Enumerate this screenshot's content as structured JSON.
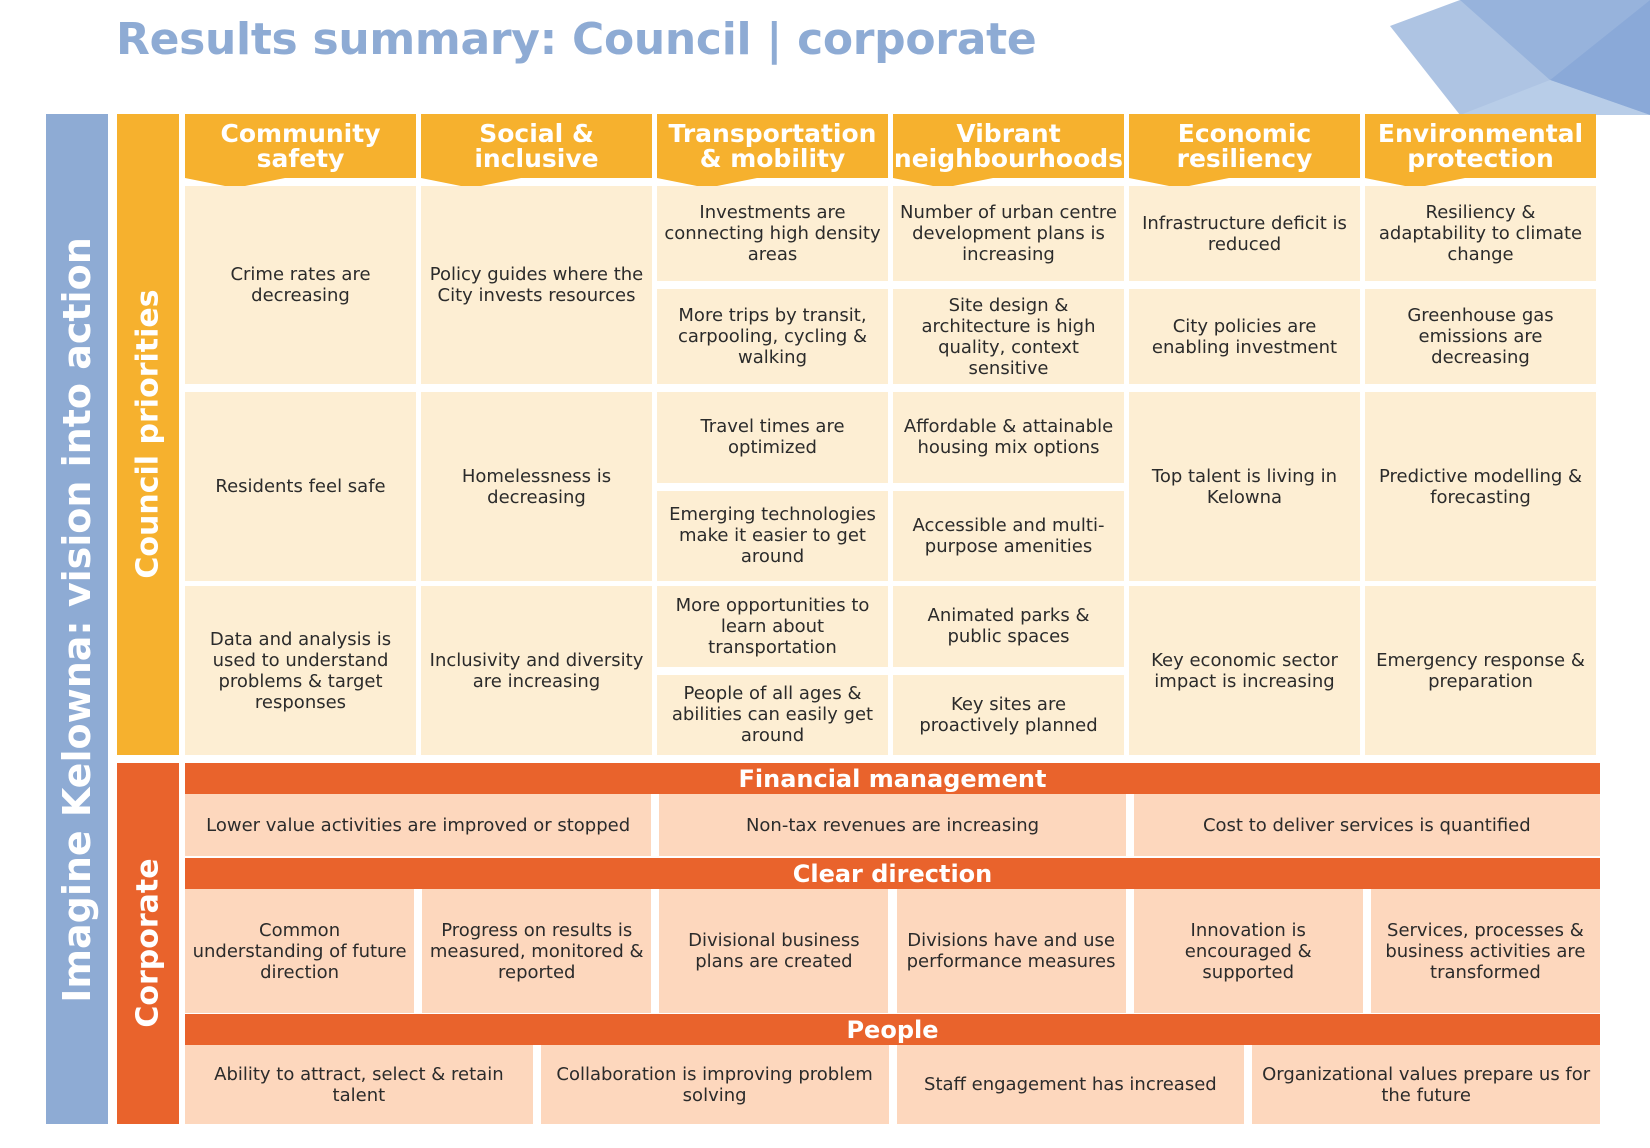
{
  "title": "Results summary: Council | corporate",
  "side": {
    "vision": "Imagine Kelowna: vision into action",
    "council": "Council priorities",
    "corporate": "Corporate"
  },
  "columns": [
    {
      "header": [
        "Community",
        "safety"
      ],
      "rows": [
        [
          "Crime rates are decreasing"
        ],
        [
          "Residents feel safe"
        ],
        [
          "Data and analysis is used to understand problems & target responses"
        ]
      ]
    },
    {
      "header": [
        "Social &",
        "inclusive"
      ],
      "rows": [
        [
          "Policy guides where the City invests resources"
        ],
        [
          "Homelessness is decreasing"
        ],
        [
          "Inclusivity and diversity are increasing"
        ]
      ]
    },
    {
      "header": [
        "Transportation",
        "& mobility"
      ],
      "rows": [
        [
          "Investments are connecting high density areas",
          "More trips by transit, carpooling, cycling & walking"
        ],
        [
          "Travel times are optimized",
          "Emerging technologies make it easier to get around"
        ],
        [
          "More opportunities to learn about transportation",
          "People of all ages & abilities can easily get around"
        ]
      ]
    },
    {
      "header": [
        "Vibrant",
        "neighbourhoods"
      ],
      "rows": [
        [
          "Number of urban centre development plans is increasing",
          "Site design & architecture is high quality, context sensitive"
        ],
        [
          "Affordable & attainable housing mix options",
          "Accessible and multi-purpose amenities"
        ],
        [
          "Animated parks & public spaces",
          "Key sites are proactively planned"
        ]
      ]
    },
    {
      "header": [
        "Economic",
        "resiliency"
      ],
      "rows": [
        [
          "Infrastructure deficit is reduced",
          "City policies are enabling investment"
        ],
        [
          "Top talent is living in Kelowna"
        ],
        [
          "Key economic sector impact is increasing"
        ]
      ]
    },
    {
      "header": [
        "Environmental",
        "protection"
      ],
      "rows": [
        [
          "Resiliency & adaptability to climate change",
          "Greenhouse gas emissions  are decreasing"
        ],
        [
          "Predictive modelling & forecasting"
        ],
        [
          "Emergency response & preparation"
        ]
      ]
    }
  ],
  "corporate": [
    {
      "title": "Financial management",
      "items": [
        "Lower value activities are improved or stopped",
        "Non-tax revenues are increasing",
        "Cost to deliver services is quantified"
      ]
    },
    {
      "title": "Clear direction",
      "items": [
        "Common understanding of future direction",
        "Progress on results is measured, monitored & reported",
        "Divisional business plans are created",
        "Divisions have and use performance measures",
        "Innovation is encouraged & supported",
        "Services, processes & business activities are transformed"
      ]
    },
    {
      "title": "People",
      "items": [
        "Ability to attract, select & retain talent",
        "Collaboration is improving problem solving",
        "Staff engagement has increased",
        "Organizational values prepare us for the future"
      ]
    }
  ],
  "colors": {
    "title": "#8eabd4",
    "vision_bar": "#8eabd4",
    "council_bar": "#f6b12e",
    "council_cell": "#fdeed3",
    "corporate_bar": "#e9632c",
    "corporate_cell": "#fdd7bd"
  }
}
